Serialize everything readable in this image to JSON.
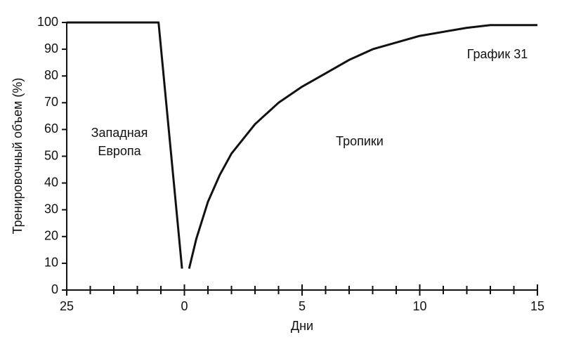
{
  "chart_data": {
    "type": "line",
    "ylabel": "Тренировочный объем (%)",
    "xlabel": "Дни",
    "annotations": [
      "Западная",
      "Европа",
      "Тропики",
      "График 31"
    ],
    "x": [
      -5,
      -1.1,
      -0.1,
      null,
      0.2,
      0.5,
      1,
      1.5,
      2,
      3,
      4,
      5,
      6,
      7,
      8,
      10,
      12,
      13,
      15
    ],
    "values": [
      100,
      100,
      8,
      null,
      8,
      19,
      33,
      43,
      51,
      62,
      70,
      76,
      81,
      86,
      90,
      95,
      98,
      99,
      99
    ],
    "color": "#111111",
    "xlim": [
      -5,
      15
    ],
    "xticks": [
      {
        "value": -5,
        "label": "25"
      },
      0,
      5,
      10,
      15
    ],
    "minor_xticks": [
      -4,
      -3,
      -2,
      -1,
      1,
      2,
      3,
      4,
      6,
      7,
      8,
      9,
      11,
      12,
      13,
      14
    ],
    "ylim": [
      0,
      100
    ],
    "yticks": [
      0,
      10,
      20,
      30,
      40,
      50,
      60,
      70,
      80,
      90,
      100
    ],
    "grid": false
  }
}
